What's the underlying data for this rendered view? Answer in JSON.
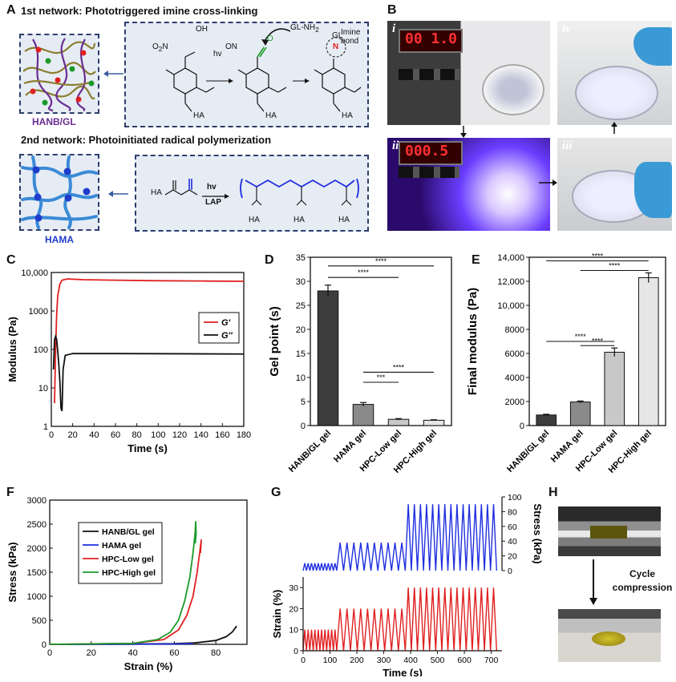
{
  "panels": {
    "A": "A",
    "B": "B",
    "C": "C",
    "D": "D",
    "E": "E",
    "F": "F",
    "G": "G",
    "H": "H"
  },
  "panel_a": {
    "network1_title": "1st network: Phototriggered imine cross-linking",
    "network2_title": "2nd network: Photoinitiated radical polymerization",
    "hanb_gl_label": "HANB/GL",
    "hama_label": "HAMA",
    "hv": "hv",
    "lap": "LAP",
    "gl_nh2": "GL-NH",
    "nh2_sub": "2",
    "imine_bond": "Imine bond",
    "ha": "HA",
    "gl": "GL",
    "oh": "OH",
    "on": "ON",
    "o2n": "O",
    "o": "O",
    "n": "N"
  },
  "panel_b": {
    "displays": [
      "00 1.0",
      "000.5"
    ],
    "roman": [
      "i",
      "ii",
      "iii",
      "iv"
    ]
  },
  "colors": {
    "red": "#e02020",
    "black": "#111111",
    "blue": "#1f2fe0",
    "green": "#1a9a2a",
    "dark_bar": "#3d3d3d",
    "mid_bar": "#8a8a8a",
    "light_bar": "#c8c8c8",
    "lighter_bar": "#e6e6e6",
    "purple": "#6a2d91",
    "hama_blue": "#1f3ccc"
  },
  "chart_data": [
    {
      "id": "C",
      "type": "line",
      "ylabel": "Modulus (Pa)",
      "xlabel": "Time (s)",
      "yscale": "log",
      "ylim": [
        1,
        10000
      ],
      "xlim": [
        0,
        180
      ],
      "xticks": [
        0,
        20,
        40,
        60,
        80,
        100,
        120,
        140,
        160,
        180
      ],
      "yticks": [
        "1",
        "10",
        "100",
        "1000",
        "10,000"
      ],
      "legend": "right",
      "series": [
        {
          "name": "G'",
          "color": "red",
          "x": [
            3,
            4,
            5,
            6,
            8,
            10,
            15,
            30,
            60,
            100,
            140,
            180
          ],
          "y": [
            4,
            100,
            800,
            2500,
            5000,
            6300,
            6800,
            6500,
            6300,
            6100,
            6000,
            5900
          ]
        },
        {
          "name": "G''",
          "color": "black",
          "x": [
            2,
            3,
            4,
            5,
            6,
            7,
            8,
            9,
            10,
            11,
            13,
            20,
            60,
            120,
            180
          ],
          "y": [
            30,
            180,
            220,
            180,
            90,
            40,
            15,
            3,
            2.5,
            30,
            70,
            78,
            78,
            77,
            76
          ]
        }
      ]
    },
    {
      "id": "D",
      "type": "bar",
      "ylabel": "Gel point (s)",
      "ylim": [
        0,
        35
      ],
      "yticks": [
        0,
        5,
        10,
        15,
        20,
        25,
        30,
        35
      ],
      "categories": [
        "HANB/GL gel",
        "HAMA gel",
        "HPC-Low gel",
        "HPC-High gel"
      ],
      "values": [
        28,
        4.4,
        1.3,
        1.1
      ],
      "errors": [
        1.2,
        0.4,
        0.15,
        0.1
      ],
      "significance": [
        {
          "from": 0,
          "to": 3,
          "label": "****"
        },
        {
          "from": 0,
          "to": 2,
          "label": "****"
        },
        {
          "from": 1,
          "to": 3,
          "label": "****"
        },
        {
          "from": 1,
          "to": 2,
          "label": "***"
        }
      ]
    },
    {
      "id": "E",
      "type": "bar",
      "ylabel": "Final modulus (Pa)",
      "ylim": [
        0,
        14000
      ],
      "yticks": [
        "0",
        "2000",
        "4000",
        "6000",
        "8000",
        "10,000",
        "12,000",
        "14,000"
      ],
      "categories": [
        "HANB/GL gel",
        "HAMA gel",
        "HPC-Low gel",
        "HPC-High gel"
      ],
      "values": [
        880,
        1960,
        6100,
        12300
      ],
      "errors": [
        60,
        80,
        350,
        400
      ],
      "significance": [
        {
          "from": 0,
          "to": 3,
          "label": "****"
        },
        {
          "from": 1,
          "to": 3,
          "label": "****"
        },
        {
          "from": 0,
          "to": 2,
          "label": "****"
        },
        {
          "from": 1,
          "to": 2,
          "label": "****"
        }
      ]
    },
    {
      "id": "F",
      "type": "line",
      "ylabel": "Stress (kPa)",
      "xlabel": "Strain (%)",
      "xlim": [
        0,
        95
      ],
      "ylim": [
        0,
        3000
      ],
      "xticks": [
        0,
        20,
        40,
        60,
        80
      ],
      "yticks": [
        0,
        500,
        1000,
        1500,
        2000,
        2500,
        3000
      ],
      "legend": "upper-left",
      "series": [
        {
          "name": "HANB/GL gel",
          "color": "black",
          "x": [
            0,
            40,
            60,
            70,
            80,
            85,
            88,
            90
          ],
          "y": [
            0,
            5,
            15,
            30,
            80,
            160,
            260,
            380
          ]
        },
        {
          "name": "HAMA gel",
          "color": "blue",
          "x": [
            0,
            30,
            60,
            69
          ],
          "y": [
            0,
            2,
            8,
            14
          ]
        },
        {
          "name": "HPC-Low gel",
          "color": "red",
          "x": [
            0,
            40,
            55,
            62,
            66,
            69,
            71,
            72.5,
            73,
            72.6
          ],
          "y": [
            0,
            20,
            100,
            300,
            600,
            1000,
            1500,
            2000,
            2180,
            1900
          ]
        },
        {
          "name": "HPC-High gel",
          "color": "green",
          "x": [
            0,
            40,
            52,
            58,
            62,
            65,
            67.5,
            69,
            70,
            70.3,
            70.5,
            70.1
          ],
          "y": [
            0,
            20,
            100,
            250,
            500,
            900,
            1400,
            1900,
            2300,
            2560,
            2300,
            2100
          ]
        }
      ]
    },
    {
      "id": "G",
      "type": "line",
      "xlabel": "Time (s)",
      "xlim": [
        0,
        740
      ],
      "xticks": [
        0,
        100,
        200,
        300,
        400,
        500,
        600,
        700
      ],
      "top": {
        "ylabel": "Stress (kPa)",
        "ylim": [
          0,
          100
        ],
        "yticks": [
          0,
          20,
          40,
          60,
          80,
          100
        ],
        "color": "blue",
        "stages": [
          {
            "start": 0,
            "end": 125,
            "cycles": 10,
            "peak": 10
          },
          {
            "start": 125,
            "end": 380,
            "cycles": 10,
            "peak": 38
          },
          {
            "start": 380,
            "end": 720,
            "cycles": 15,
            "peak": 90
          }
        ]
      },
      "bottom": {
        "ylabel": "Strain (%)",
        "ylim": [
          0,
          35
        ],
        "yticks": [
          0,
          10,
          20,
          30
        ],
        "color": "red",
        "stages": [
          {
            "start": 0,
            "end": 125,
            "cycles": 10,
            "peak": 10
          },
          {
            "start": 125,
            "end": 380,
            "cycles": 10,
            "peak": 20
          },
          {
            "start": 380,
            "end": 720,
            "cycles": 15,
            "peak": 30
          }
        ]
      }
    }
  ],
  "panel_h": {
    "caption": "Cycle compression"
  }
}
